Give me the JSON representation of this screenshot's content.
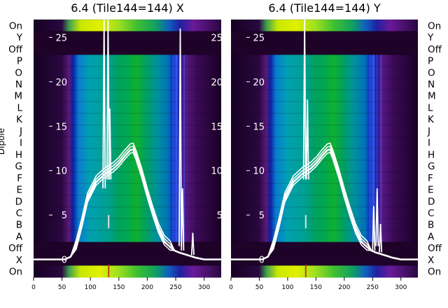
{
  "chart_data": [
    {
      "type": "heatmap",
      "title": "6.4 (Tile144=144) X",
      "ylabel": "Dipole",
      "xlim": [
        0,
        330
      ],
      "ylim": [
        -2,
        27
      ],
      "x_ticks": [
        0,
        50,
        100,
        150,
        200,
        250,
        300
      ],
      "y_ticks": [
        0,
        5,
        10,
        15,
        20,
        25
      ],
      "dipole_labels_side": "left",
      "overlay_line": {
        "color": "#ffffff",
        "x": [
          0,
          55,
          65,
          75,
          85,
          95,
          110,
          125,
          140,
          150,
          160,
          170,
          175,
          180,
          190,
          200,
          210,
          220,
          230,
          240,
          248,
          255,
          265,
          275,
          285,
          300,
          330
        ],
        "y": [
          0,
          0,
          0.3,
          1.5,
          4,
          6.8,
          8.7,
          9.6,
          10.2,
          10.8,
          11.6,
          12.3,
          12.4,
          11.6,
          9.6,
          7.3,
          5.2,
          3.3,
          2,
          1.4,
          1,
          0.8,
          0.6,
          0.4,
          0.2,
          0,
          0
        ]
      }
    },
    {
      "type": "heatmap",
      "title": "6.4 (Tile144=144) Y",
      "xlim": [
        0,
        330
      ],
      "ylim": [
        -2,
        27
      ],
      "x_ticks": [
        0,
        50,
        100,
        150,
        200,
        250,
        300
      ],
      "y_ticks": [
        0,
        5,
        10,
        15,
        20,
        25
      ],
      "dipole_labels_side": "right",
      "overlay_line": {
        "color": "#ffffff",
        "x": [
          0,
          55,
          65,
          75,
          85,
          95,
          110,
          125,
          140,
          150,
          160,
          170,
          175,
          180,
          190,
          200,
          210,
          220,
          230,
          240,
          248,
          255,
          265,
          275,
          285,
          300,
          330
        ],
        "y": [
          0,
          0,
          0.3,
          1.5,
          4,
          6.8,
          8.7,
          9.6,
          10.2,
          10.8,
          11.6,
          12.3,
          12.4,
          11.6,
          9.6,
          7.3,
          5.2,
          3.3,
          2,
          1.4,
          1,
          0.8,
          0.6,
          0.4,
          0.2,
          0,
          0
        ]
      }
    }
  ],
  "dipole_rows": [
    "On",
    "Y",
    "Off",
    "P",
    "O",
    "N",
    "M",
    "L",
    "K",
    "J",
    "I",
    "H",
    "G",
    "F",
    "E",
    "D",
    "C",
    "B",
    "A",
    "Off",
    "X",
    "On"
  ]
}
